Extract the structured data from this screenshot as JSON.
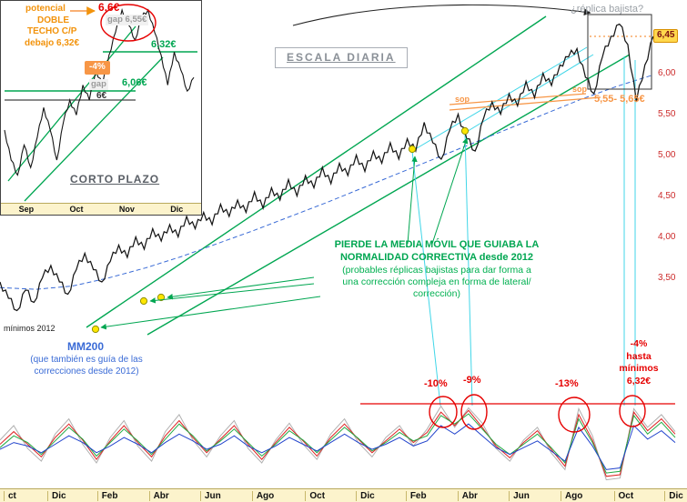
{
  "colors": {
    "price": "#151515",
    "green_annotation": "#00a651",
    "channel_green": "#00a651",
    "orange": "#f79646",
    "red": "#e60000",
    "blue_mm200": "#3a6bd6",
    "cyan": "#40d6e8",
    "gray_text": "#9aa0a6",
    "yellow_dot": "#ffe600",
    "axis_label_red": "#cc2a2a",
    "axis_bar_bg": "#fcf3cc",
    "badge_bg": "#ffd84d"
  },
  "inset": {
    "labels": {
      "potencial": "potencial",
      "doble1": "DOBLE",
      "doble2": "TECHO C/P",
      "debajo": "debajo 6,32€",
      "high": "6,6€",
      "gap_top": "gap 6,55€",
      "level_632": "6,32€",
      "minus4": "-4%",
      "gap_bottom": "gap",
      "level_606": "6,06€",
      "level_6": "6€",
      "title": "CORTO PLAZO"
    },
    "axis": [
      "Sep",
      "Oct",
      "Nov",
      "Dic"
    ]
  },
  "main": {
    "scale_label": "ESCALA DIARIA",
    "replica_label": "¿réplica bajista?",
    "support_label": "5,55- 5,65€",
    "sop_labels": [
      "sop",
      "sop"
    ],
    "price_axis": [
      "6,45",
      "6,00",
      "5,50",
      "5,00",
      "4,50",
      "4,00",
      "3,50"
    ],
    "green_note_bold": [
      "PIERDE LA MEDIA MÓVIL QUE GUIABA LA",
      "NORMALIDAD CORRECTIVA desde 2012"
    ],
    "green_note": [
      "(probables réplicas bajistas para dar forma a",
      "una corrección compleja en forma de lateral/",
      "corrección)"
    ],
    "minimos": "mínimos 2012",
    "mm200": "MM200",
    "mm200_note": [
      "(que también es guía de las",
      "correcciones desde 2012)"
    ]
  },
  "oscillator": {
    "labels": [
      "-10%",
      "-9%",
      "-13%"
    ],
    "right_label": [
      "-4%",
      "hasta",
      "mínimos",
      "6,32€"
    ]
  },
  "x_axis": [
    "ct",
    "Dic",
    "Feb",
    "Abr",
    "Jun",
    "Ago",
    "Oct",
    "Dic",
    "Feb",
    "Abr",
    "Jun",
    "Ago",
    "Oct",
    "Dic"
  ],
  "chart_data": {
    "type": "line",
    "title": "ESCALA DIARIA",
    "ylabel": "EUR",
    "price_axis_ticks": [
      6.0,
      5.5,
      5.0,
      4.5,
      4.0,
      3.5
    ],
    "current_price": 6.45,
    "main_series": {
      "name": "precio diario",
      "ylim": [
        3.0,
        6.8
      ],
      "values": [
        3.45,
        3.25,
        3.1,
        3.35,
        3.2,
        3.5,
        3.65,
        3.45,
        3.3,
        3.6,
        3.8,
        3.6,
        3.45,
        3.7,
        3.9,
        3.75,
        4.0,
        3.85,
        4.1,
        3.95,
        4.15,
        4.0,
        4.25,
        4.1,
        4.3,
        4.15,
        4.4,
        4.25,
        4.45,
        4.3,
        4.55,
        4.35,
        4.6,
        4.45,
        4.7,
        4.5,
        4.75,
        4.6,
        4.85,
        4.65,
        4.9,
        4.75,
        5.0,
        4.8,
        5.05,
        4.9,
        5.15,
        4.95,
        5.2,
        5.05,
        5.4,
        5.15,
        4.95,
        5.3,
        5.5,
        5.2,
        5.05,
        5.45,
        5.65,
        5.5,
        5.75,
        5.6,
        5.9,
        5.7,
        6.0,
        5.85,
        6.1,
        6.2,
        6.3,
        5.95,
        5.75,
        6.2,
        6.45,
        6.6,
        6.35,
        5.65,
        6.1,
        6.45
      ]
    },
    "mm200_series": {
      "name": "MM200",
      "values": [
        3.38,
        3.36,
        3.4,
        3.5,
        3.62,
        3.76,
        3.92,
        4.08,
        4.25,
        4.42,
        4.6,
        4.78,
        4.96,
        5.14,
        5.32,
        5.5,
        5.68,
        5.84,
        5.98
      ]
    },
    "inset_series": {
      "name": "corto plazo",
      "levels": [
        6.6,
        6.55,
        6.32,
        6.06,
        6.0
      ],
      "values": [
        5.8,
        5.6,
        5.5,
        5.7,
        5.55,
        5.75,
        5.95,
        5.8,
        5.6,
        5.85,
        6.0,
        5.9,
        6.1,
        6.0,
        6.2,
        6.1,
        6.3,
        6.45,
        6.6,
        6.5,
        6.4,
        6.55,
        6.6,
        6.45,
        6.3,
        6.1,
        6.32,
        6.2,
        6.06,
        6.15
      ]
    },
    "oscillator_series": [
      {
        "name": "osc-gray",
        "color": "#b0b0b0",
        "values": [
          55,
          72,
          45,
          30,
          62,
          80,
          50,
          28,
          58,
          78,
          48,
          30,
          65,
          85,
          55,
          35,
          60,
          78,
          45,
          28,
          55,
          75,
          50,
          32,
          62,
          80,
          52,
          35,
          58,
          72,
          48,
          68,
          95,
          70,
          93,
          75,
          45,
          30,
          55,
          70,
          40,
          20,
          92,
          60,
          8,
          10,
          92,
          70,
          85,
          65
        ]
      },
      {
        "name": "osc-red",
        "color": "#dd2222",
        "values": [
          50,
          65,
          50,
          35,
          58,
          74,
          55,
          32,
          54,
          72,
          52,
          35,
          60,
          78,
          58,
          40,
          56,
          72,
          50,
          32,
          52,
          70,
          54,
          36,
          58,
          74,
          56,
          40,
          54,
          68,
          52,
          64,
          88,
          72,
          90,
          70,
          48,
          34,
          52,
          66,
          44,
          24,
          85,
          55,
          12,
          14,
          88,
          66,
          80,
          62
        ]
      },
      {
        "name": "osc-green",
        "color": "#22aa44",
        "values": [
          46,
          60,
          52,
          38,
          54,
          70,
          56,
          36,
          52,
          68,
          54,
          38,
          56,
          74,
          60,
          42,
          54,
          68,
          52,
          36,
          50,
          66,
          55,
          40,
          55,
          70,
          57,
          42,
          52,
          64,
          54,
          60,
          84,
          74,
          86,
          68,
          50,
          38,
          50,
          62,
          46,
          28,
          80,
          52,
          16,
          18,
          84,
          62,
          76,
          58
        ]
      },
      {
        "name": "osc-blue",
        "color": "#2244cc",
        "values": [
          44,
          52,
          48,
          40,
          50,
          60,
          52,
          40,
          48,
          58,
          50,
          40,
          52,
          62,
          54,
          44,
          50,
          60,
          48,
          40,
          48,
          58,
          50,
          42,
          52,
          62,
          52,
          44,
          50,
          58,
          48,
          54,
          72,
          62,
          74,
          60,
          46,
          38,
          46,
          54,
          42,
          30,
          70,
          48,
          20,
          22,
          72,
          56,
          66,
          52
        ]
      }
    ],
    "annotations": {
      "channel_lines": [
        [
          95,
          360,
          600,
          18
        ],
        [
          162,
          368,
          692,
          60
        ]
      ],
      "cyan_lines": [
        [
          453,
          166,
          484,
          446
        ],
        [
          511,
          146,
          519,
          446
        ],
        [
          453,
          166,
          645,
          52
        ],
        [
          511,
          146,
          652,
          60
        ],
        [
          686,
          62,
          686,
          446
        ],
        [
          698,
          66,
          698,
          446
        ]
      ],
      "orange_support_lines": [
        [
          494,
          121,
          660,
          107
        ],
        [
          494,
          115,
          644,
          103
        ]
      ],
      "orange_dotted_price_line": [
        648,
        40,
        718,
        40
      ],
      "red_baseline": [
        396,
        444,
        742,
        444
      ],
      "red_ellipses": [
        [
          487,
          453,
          15,
          17
        ],
        [
          521,
          453,
          14,
          19
        ],
        [
          631,
          456,
          17,
          19
        ],
        [
          695,
          452,
          14,
          17
        ]
      ],
      "yellow_dots": [
        [
          105,
          362
        ],
        [
          158,
          331
        ],
        [
          177,
          327
        ],
        [
          453,
          164
        ],
        [
          511,
          144
        ]
      ],
      "green_arrows": [
        [
          345,
          305,
          184,
          327
        ],
        [
          345,
          312,
          165,
          331
        ],
        [
          352,
          326,
          111,
          360
        ],
        [
          448,
          268,
          456,
          172
        ],
        [
          475,
          268,
          513,
          152
        ]
      ],
      "top_arc": [
        322,
        28,
        420,
        2,
        545,
        0,
        648,
        14
      ],
      "top_box": [
        646,
        16,
        70,
        82
      ],
      "inset": {
        "channel_lines": [
          [
            8,
            198,
            148,
            28
          ],
          [
            26,
            220,
            178,
            62
          ]
        ],
        "level_632_line": [
          112,
          56,
          216,
          56
        ],
        "level_606_line": [
          4,
          99,
          148,
          99
        ],
        "level_600_line": [
          4,
          109,
          148,
          109
        ],
        "red_ellipse": [
          140,
          24,
          30,
          20
        ],
        "orange_arrow": [
          76,
          11,
          103,
          11
        ]
      }
    }
  }
}
